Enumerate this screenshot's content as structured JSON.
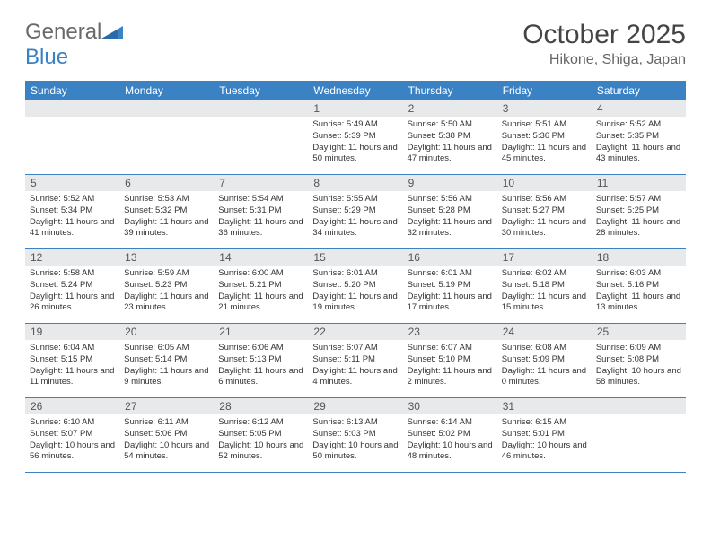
{
  "logo": {
    "text1": "General",
    "text2": "Blue",
    "text1_color": "#6a6a6a",
    "text2_color": "#3b82c4"
  },
  "title": "October 2025",
  "location": "Hikone, Shiga, Japan",
  "header_bg": "#3b82c4",
  "header_text_color": "#ffffff",
  "daynum_bg": "#e8e9ea",
  "border_color": "#3b82c4",
  "weekdays": [
    "Sunday",
    "Monday",
    "Tuesday",
    "Wednesday",
    "Thursday",
    "Friday",
    "Saturday"
  ],
  "weeks": [
    [
      {
        "num": "",
        "sunrise": "",
        "sunset": "",
        "daylight": ""
      },
      {
        "num": "",
        "sunrise": "",
        "sunset": "",
        "daylight": ""
      },
      {
        "num": "",
        "sunrise": "",
        "sunset": "",
        "daylight": ""
      },
      {
        "num": "1",
        "sunrise": "Sunrise: 5:49 AM",
        "sunset": "Sunset: 5:39 PM",
        "daylight": "Daylight: 11 hours and 50 minutes."
      },
      {
        "num": "2",
        "sunrise": "Sunrise: 5:50 AM",
        "sunset": "Sunset: 5:38 PM",
        "daylight": "Daylight: 11 hours and 47 minutes."
      },
      {
        "num": "3",
        "sunrise": "Sunrise: 5:51 AM",
        "sunset": "Sunset: 5:36 PM",
        "daylight": "Daylight: 11 hours and 45 minutes."
      },
      {
        "num": "4",
        "sunrise": "Sunrise: 5:52 AM",
        "sunset": "Sunset: 5:35 PM",
        "daylight": "Daylight: 11 hours and 43 minutes."
      }
    ],
    [
      {
        "num": "5",
        "sunrise": "Sunrise: 5:52 AM",
        "sunset": "Sunset: 5:34 PM",
        "daylight": "Daylight: 11 hours and 41 minutes."
      },
      {
        "num": "6",
        "sunrise": "Sunrise: 5:53 AM",
        "sunset": "Sunset: 5:32 PM",
        "daylight": "Daylight: 11 hours and 39 minutes."
      },
      {
        "num": "7",
        "sunrise": "Sunrise: 5:54 AM",
        "sunset": "Sunset: 5:31 PM",
        "daylight": "Daylight: 11 hours and 36 minutes."
      },
      {
        "num": "8",
        "sunrise": "Sunrise: 5:55 AM",
        "sunset": "Sunset: 5:29 PM",
        "daylight": "Daylight: 11 hours and 34 minutes."
      },
      {
        "num": "9",
        "sunrise": "Sunrise: 5:56 AM",
        "sunset": "Sunset: 5:28 PM",
        "daylight": "Daylight: 11 hours and 32 minutes."
      },
      {
        "num": "10",
        "sunrise": "Sunrise: 5:56 AM",
        "sunset": "Sunset: 5:27 PM",
        "daylight": "Daylight: 11 hours and 30 minutes."
      },
      {
        "num": "11",
        "sunrise": "Sunrise: 5:57 AM",
        "sunset": "Sunset: 5:25 PM",
        "daylight": "Daylight: 11 hours and 28 minutes."
      }
    ],
    [
      {
        "num": "12",
        "sunrise": "Sunrise: 5:58 AM",
        "sunset": "Sunset: 5:24 PM",
        "daylight": "Daylight: 11 hours and 26 minutes."
      },
      {
        "num": "13",
        "sunrise": "Sunrise: 5:59 AM",
        "sunset": "Sunset: 5:23 PM",
        "daylight": "Daylight: 11 hours and 23 minutes."
      },
      {
        "num": "14",
        "sunrise": "Sunrise: 6:00 AM",
        "sunset": "Sunset: 5:21 PM",
        "daylight": "Daylight: 11 hours and 21 minutes."
      },
      {
        "num": "15",
        "sunrise": "Sunrise: 6:01 AM",
        "sunset": "Sunset: 5:20 PM",
        "daylight": "Daylight: 11 hours and 19 minutes."
      },
      {
        "num": "16",
        "sunrise": "Sunrise: 6:01 AM",
        "sunset": "Sunset: 5:19 PM",
        "daylight": "Daylight: 11 hours and 17 minutes."
      },
      {
        "num": "17",
        "sunrise": "Sunrise: 6:02 AM",
        "sunset": "Sunset: 5:18 PM",
        "daylight": "Daylight: 11 hours and 15 minutes."
      },
      {
        "num": "18",
        "sunrise": "Sunrise: 6:03 AM",
        "sunset": "Sunset: 5:16 PM",
        "daylight": "Daylight: 11 hours and 13 minutes."
      }
    ],
    [
      {
        "num": "19",
        "sunrise": "Sunrise: 6:04 AM",
        "sunset": "Sunset: 5:15 PM",
        "daylight": "Daylight: 11 hours and 11 minutes."
      },
      {
        "num": "20",
        "sunrise": "Sunrise: 6:05 AM",
        "sunset": "Sunset: 5:14 PM",
        "daylight": "Daylight: 11 hours and 9 minutes."
      },
      {
        "num": "21",
        "sunrise": "Sunrise: 6:06 AM",
        "sunset": "Sunset: 5:13 PM",
        "daylight": "Daylight: 11 hours and 6 minutes."
      },
      {
        "num": "22",
        "sunrise": "Sunrise: 6:07 AM",
        "sunset": "Sunset: 5:11 PM",
        "daylight": "Daylight: 11 hours and 4 minutes."
      },
      {
        "num": "23",
        "sunrise": "Sunrise: 6:07 AM",
        "sunset": "Sunset: 5:10 PM",
        "daylight": "Daylight: 11 hours and 2 minutes."
      },
      {
        "num": "24",
        "sunrise": "Sunrise: 6:08 AM",
        "sunset": "Sunset: 5:09 PM",
        "daylight": "Daylight: 11 hours and 0 minutes."
      },
      {
        "num": "25",
        "sunrise": "Sunrise: 6:09 AM",
        "sunset": "Sunset: 5:08 PM",
        "daylight": "Daylight: 10 hours and 58 minutes."
      }
    ],
    [
      {
        "num": "26",
        "sunrise": "Sunrise: 6:10 AM",
        "sunset": "Sunset: 5:07 PM",
        "daylight": "Daylight: 10 hours and 56 minutes."
      },
      {
        "num": "27",
        "sunrise": "Sunrise: 6:11 AM",
        "sunset": "Sunset: 5:06 PM",
        "daylight": "Daylight: 10 hours and 54 minutes."
      },
      {
        "num": "28",
        "sunrise": "Sunrise: 6:12 AM",
        "sunset": "Sunset: 5:05 PM",
        "daylight": "Daylight: 10 hours and 52 minutes."
      },
      {
        "num": "29",
        "sunrise": "Sunrise: 6:13 AM",
        "sunset": "Sunset: 5:03 PM",
        "daylight": "Daylight: 10 hours and 50 minutes."
      },
      {
        "num": "30",
        "sunrise": "Sunrise: 6:14 AM",
        "sunset": "Sunset: 5:02 PM",
        "daylight": "Daylight: 10 hours and 48 minutes."
      },
      {
        "num": "31",
        "sunrise": "Sunrise: 6:15 AM",
        "sunset": "Sunset: 5:01 PM",
        "daylight": "Daylight: 10 hours and 46 minutes."
      },
      {
        "num": "",
        "sunrise": "",
        "sunset": "",
        "daylight": ""
      }
    ]
  ]
}
